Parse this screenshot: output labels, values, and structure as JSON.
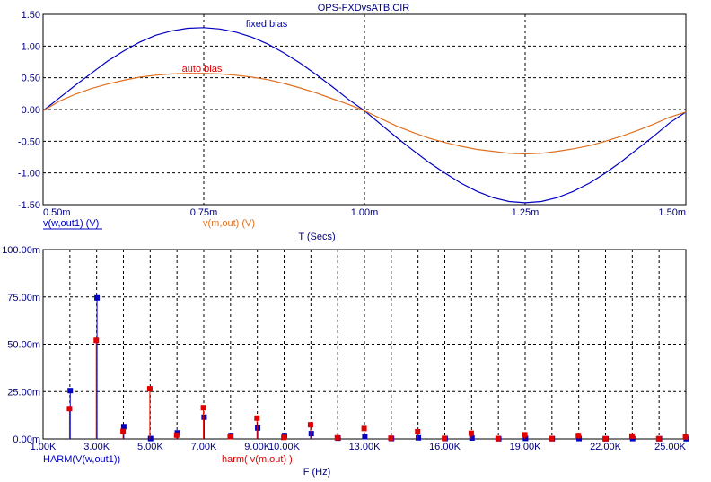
{
  "window_title": "OPS-FXDvsATB.CIR",
  "colors": {
    "blue": "#0000c0",
    "red": "#e00000",
    "orange": "#e07020",
    "axis_text": "#000080"
  },
  "chart_data": [
    {
      "type": "line",
      "xlabel": "T (Secs)",
      "xlim": [
        0.0005,
        0.0015
      ],
      "ylim": [
        -1.5,
        1.5
      ],
      "x_ticks": [
        {
          "value": 0.0005,
          "label": "0.50m"
        },
        {
          "value": 0.00075,
          "label": "0.75m"
        },
        {
          "value": 0.001,
          "label": "1.00m"
        },
        {
          "value": 0.00125,
          "label": "1.25m"
        },
        {
          "value": 0.0015,
          "label": "1.50m"
        }
      ],
      "y_ticks": [
        {
          "value": 1.5,
          "label": "1.50"
        },
        {
          "value": 1.0,
          "label": "1.00"
        },
        {
          "value": 0.5,
          "label": "0.50"
        },
        {
          "value": 0.0,
          "label": "0.00"
        },
        {
          "value": -0.5,
          "label": "-0.50"
        },
        {
          "value": -1.0,
          "label": "-1.00"
        },
        {
          "value": -1.5,
          "label": "-1.50"
        }
      ],
      "grid": true,
      "legend": [
        "v(w,out1) (V)",
        "v(m,out) (V)"
      ],
      "annotations": [
        "fixed bias",
        "auto bias"
      ],
      "series": [
        {
          "name": "v(w,out1) (V)",
          "color": "#0000c0",
          "x": [
            0.0005,
            0.000525,
            0.00055,
            0.000575,
            0.0006,
            0.000625,
            0.00065,
            0.000675,
            0.0007,
            0.000725,
            0.00075,
            0.000775,
            0.0008,
            0.000825,
            0.00085,
            0.000875,
            0.0009,
            0.000925,
            0.00095,
            0.000975,
            0.001,
            0.001025,
            0.00105,
            0.001075,
            0.0011,
            0.001125,
            0.00115,
            0.001175,
            0.0012,
            0.001225,
            0.00125,
            0.001275,
            0.0013,
            0.001325,
            0.00135,
            0.001375,
            0.0014,
            0.001425,
            0.00145,
            0.001475,
            0.0015
          ],
          "y": [
            -0.02,
            0.18,
            0.38,
            0.57,
            0.76,
            0.92,
            1.06,
            1.17,
            1.24,
            1.28,
            1.29,
            1.27,
            1.22,
            1.14,
            1.03,
            0.89,
            0.73,
            0.55,
            0.36,
            0.16,
            -0.02,
            -0.23,
            -0.44,
            -0.64,
            -0.83,
            -1.0,
            -1.16,
            -1.29,
            -1.39,
            -1.45,
            -1.47,
            -1.45,
            -1.39,
            -1.29,
            -1.16,
            -1.0,
            -0.82,
            -0.62,
            -0.42,
            -0.21,
            -0.04
          ]
        },
        {
          "name": "v(m,out) (V)",
          "color": "#e07020",
          "x": [
            0.0005,
            0.000525,
            0.00055,
            0.000575,
            0.0006,
            0.000625,
            0.00065,
            0.000675,
            0.0007,
            0.000725,
            0.00075,
            0.000775,
            0.0008,
            0.000825,
            0.00085,
            0.000875,
            0.0009,
            0.000925,
            0.00095,
            0.000975,
            0.001,
            0.001025,
            0.00105,
            0.001075,
            0.0011,
            0.001125,
            0.00115,
            0.001175,
            0.0012,
            0.001225,
            0.00125,
            0.001275,
            0.0013,
            0.001325,
            0.00135,
            0.001375,
            0.0014,
            0.001425,
            0.00145,
            0.001475,
            0.0015
          ],
          "y": [
            -0.02,
            0.13,
            0.24,
            0.33,
            0.4,
            0.46,
            0.51,
            0.54,
            0.56,
            0.57,
            0.57,
            0.56,
            0.54,
            0.51,
            0.47,
            0.41,
            0.34,
            0.26,
            0.17,
            0.08,
            -0.02,
            -0.14,
            -0.26,
            -0.36,
            -0.45,
            -0.52,
            -0.58,
            -0.63,
            -0.66,
            -0.69,
            -0.7,
            -0.69,
            -0.66,
            -0.62,
            -0.57,
            -0.5,
            -0.42,
            -0.33,
            -0.23,
            -0.12,
            -0.04
          ]
        }
      ]
    },
    {
      "type": "bar",
      "xlabel": "F (Hz)",
      "xlim": [
        1000,
        25000
      ],
      "ylim": [
        0,
        100
      ],
      "x_ticks": [
        {
          "value": 1000,
          "label": "1.00K"
        },
        {
          "value": 3000,
          "label": "3.00K"
        },
        {
          "value": 5000,
          "label": "5.00K"
        },
        {
          "value": 7000,
          "label": "7.00K"
        },
        {
          "value": 9000,
          "label": "9.00K"
        },
        {
          "value": 10000,
          "label": "10.00K"
        },
        {
          "value": 13000,
          "label": "13.00K"
        },
        {
          "value": 16000,
          "label": "16.00K"
        },
        {
          "value": 19000,
          "label": "19.00K"
        },
        {
          "value": 22000,
          "label": "22.00K"
        },
        {
          "value": 25000,
          "label": "25.00K"
        }
      ],
      "y_ticks": [
        {
          "value": 100,
          "label": "100.00m"
        },
        {
          "value": 75,
          "label": "75.00m"
        },
        {
          "value": 50,
          "label": "50.00m"
        },
        {
          "value": 25,
          "label": "25.00m"
        },
        {
          "value": 0,
          "label": "0.00m"
        }
      ],
      "grid": true,
      "legend": [
        "HARM(V(w,out1))",
        "harm(  v(m,out) )"
      ],
      "series": [
        {
          "name": "HARM(V(w,out1))",
          "color": "#0000c0",
          "x": [
            2000,
            3000,
            4000,
            5000,
            6000,
            7000,
            8000,
            9000,
            10000,
            11000,
            12000,
            13000,
            14000,
            15000,
            16000,
            17000,
            18000,
            19000,
            20000,
            21000,
            22000,
            23000,
            24000,
            25000
          ],
          "values": [
            25.5,
            74.5,
            6.5,
            0.2,
            3.2,
            11.5,
            1.8,
            5.8,
            1.8,
            2.8,
            0.4,
            1.2,
            0.2,
            0.6,
            0.2,
            0.5,
            0.1,
            0.3,
            0.1,
            0.2,
            0.1,
            0.2,
            0.1,
            0.1
          ]
        },
        {
          "name": "harm(  v(m,out) )",
          "color": "#e00000",
          "x": [
            2000,
            3000,
            4000,
            5000,
            6000,
            7000,
            8000,
            9000,
            10000,
            11000,
            12000,
            13000,
            14000,
            15000,
            16000,
            17000,
            18000,
            19000,
            20000,
            21000,
            22000,
            23000,
            24000,
            25000
          ],
          "values": [
            16.0,
            52.0,
            4.0,
            26.5,
            2.0,
            16.5,
            1.2,
            11.0,
            0.8,
            7.5,
            0.6,
            5.5,
            0.4,
            3.8,
            0.3,
            3.0,
            0.2,
            2.2,
            0.2,
            1.8,
            0.1,
            1.5,
            0.1,
            1.1
          ]
        }
      ]
    }
  ]
}
